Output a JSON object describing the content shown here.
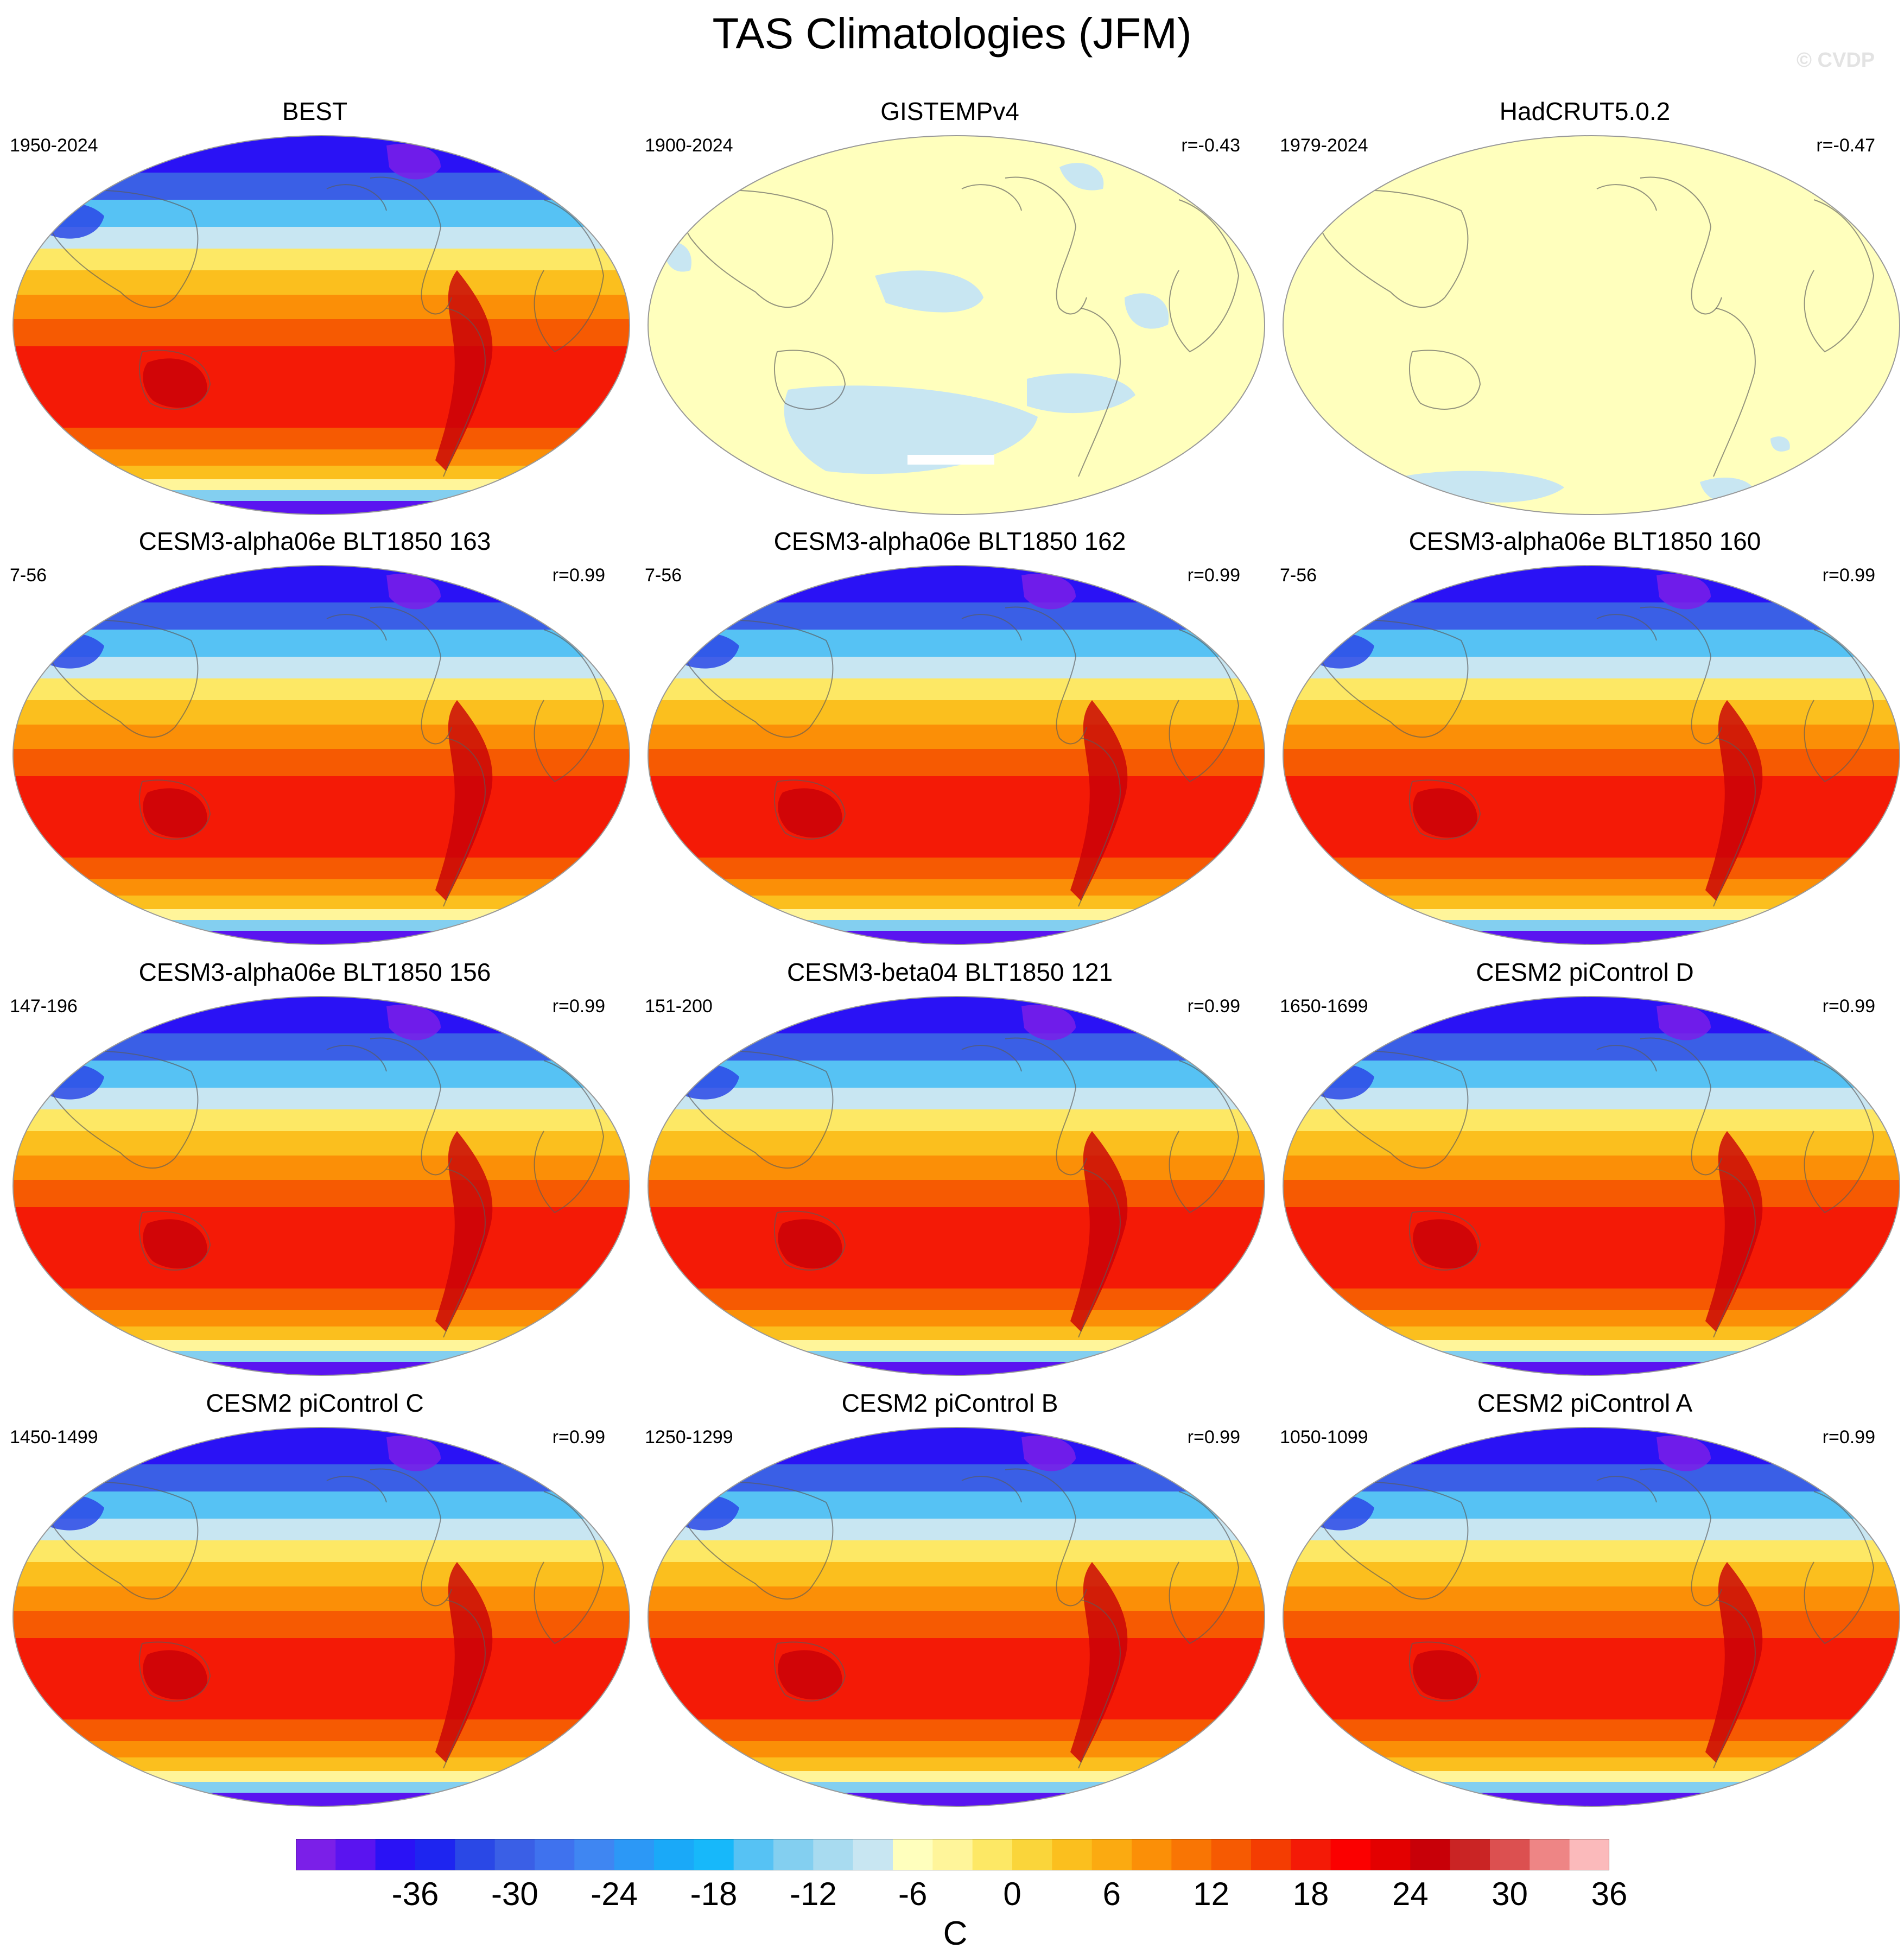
{
  "title": "TAS Climatologies (JFM)",
  "watermark": "© CVDP",
  "colorbar": {
    "unit": "C",
    "tick_labels": [
      "-36",
      "-30",
      "-24",
      "-18",
      "-12",
      "-6",
      "0",
      "6",
      "12",
      "18",
      "24",
      "30",
      "36"
    ],
    "colors": [
      "#7b1fe8",
      "#5a14f0",
      "#2a12f5",
      "#1e25f0",
      "#2a48e6",
      "#3a5fe6",
      "#3f72ee",
      "#3f86f2",
      "#2c98f6",
      "#1aa9f8",
      "#17b8fa",
      "#56c2f4",
      "#83cff0",
      "#a8dbf0",
      "#c8e6f2",
      "#ffffbd",
      "#fff59a",
      "#fde865",
      "#fad53a",
      "#fbbf1e",
      "#fbaa11",
      "#fb8f07",
      "#f97504",
      "#f65a02",
      "#f43d02",
      "#f41a06",
      "#fb0000",
      "#e30000",
      "#c80008",
      "#ca2424",
      "#dc5050",
      "#ee8585",
      "#fbbabb"
    ]
  },
  "panels": [
    {
      "title": "BEST",
      "years": "1950-2024",
      "corr": "",
      "style": "full"
    },
    {
      "title": "GISTEMPv4",
      "years": "1900-2024",
      "corr": "r=-0.43",
      "style": "anom1"
    },
    {
      "title": "HadCRUT5.0.2",
      "years": "1979-2024",
      "corr": "r=-0.47",
      "style": "anom2"
    },
    {
      "title": "CESM3-alpha06e BLT1850 163",
      "years": "7-56",
      "corr": "r=0.99",
      "style": "full"
    },
    {
      "title": "CESM3-alpha06e BLT1850 162",
      "years": "7-56",
      "corr": "r=0.99",
      "style": "full"
    },
    {
      "title": "CESM3-alpha06e BLT1850 160",
      "years": "7-56",
      "corr": "r=0.99",
      "style": "full"
    },
    {
      "title": "CESM3-alpha06e BLT1850 156",
      "years": "147-196",
      "corr": "r=0.99",
      "style": "full"
    },
    {
      "title": "CESM3-beta04 BLT1850 121",
      "years": "151-200",
      "corr": "r=0.99",
      "style": "full"
    },
    {
      "title": "CESM2 piControl D",
      "years": "1650-1699",
      "corr": "r=0.99",
      "style": "full"
    },
    {
      "title": "CESM2 piControl C",
      "years": "1450-1499",
      "corr": "r=0.99",
      "style": "full"
    },
    {
      "title": "CESM2 piControl B",
      "years": "1250-1299",
      "corr": "r=0.99",
      "style": "full"
    },
    {
      "title": "CESM2 piControl A",
      "years": "1050-1099",
      "corr": "r=0.99",
      "style": "full"
    }
  ]
}
